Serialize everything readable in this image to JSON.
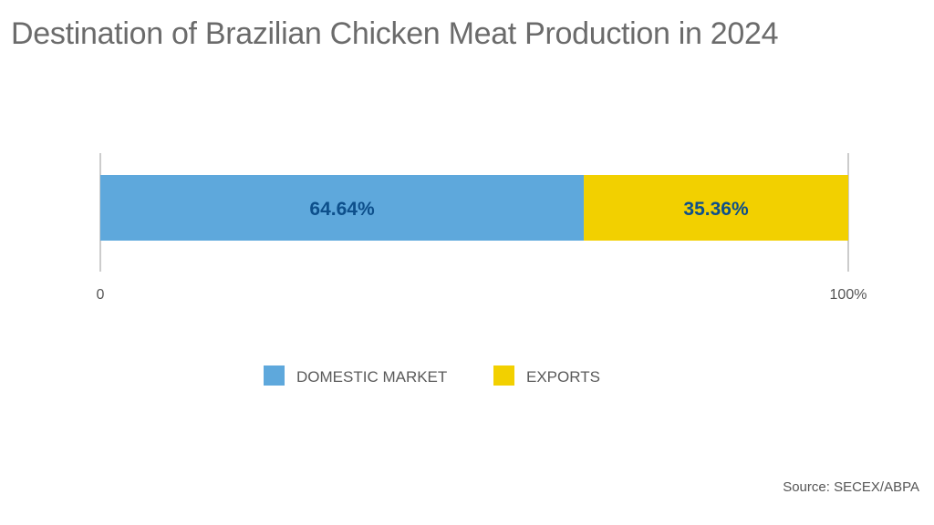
{
  "chart_data": {
    "type": "bar",
    "orientation": "horizontal-stacked",
    "title": "Destination of Brazilian Chicken Meat Production in 2024",
    "series": [
      {
        "name": "DOMESTIC MARKET",
        "value": 64.64,
        "label": "64.64%",
        "color": "#5ea8dc"
      },
      {
        "name": "EXPORTS",
        "value": 35.36,
        "label": "35.36%",
        "color": "#f2d000"
      }
    ],
    "xlim": [
      0,
      100
    ],
    "tick_labels": [
      "0",
      "100%"
    ],
    "data_label_color": "#0d4f8b",
    "legend_position": "bottom-center",
    "source": "Source: SECEX/ABPA"
  }
}
